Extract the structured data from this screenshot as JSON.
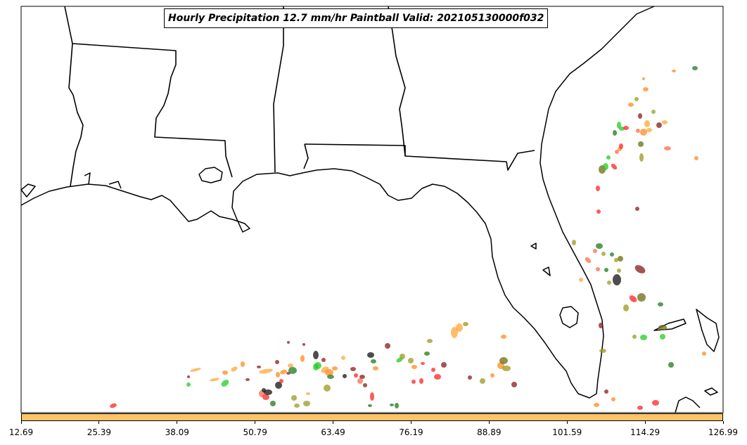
{
  "title": "Hourly Precipitation 12.7 mm/hr Paintball Valid: 202105130000f032",
  "colorbar": {
    "color": "#ffc469",
    "ticks": [
      "12.69",
      "25.39",
      "38.09",
      "50.79",
      "63.49",
      "76.19",
      "88.89",
      "101.59",
      "114.29",
      "126.99"
    ]
  },
  "palette": {
    "green": "#22cc22",
    "dark_green": "#1e7a1e",
    "orange": "#ff8a1e",
    "light_orange": "#ffa53a",
    "red": "#ff2222",
    "dark_red": "#8b1a1a",
    "olive": "#9a9a1e",
    "dark_olive": "#6b6b0e",
    "black": "#111111",
    "salmon": "#ff6a4a"
  },
  "map": {
    "region": "US Gulf Coast and Florida",
    "features": [
      "coastline",
      "state-borders"
    ]
  }
}
